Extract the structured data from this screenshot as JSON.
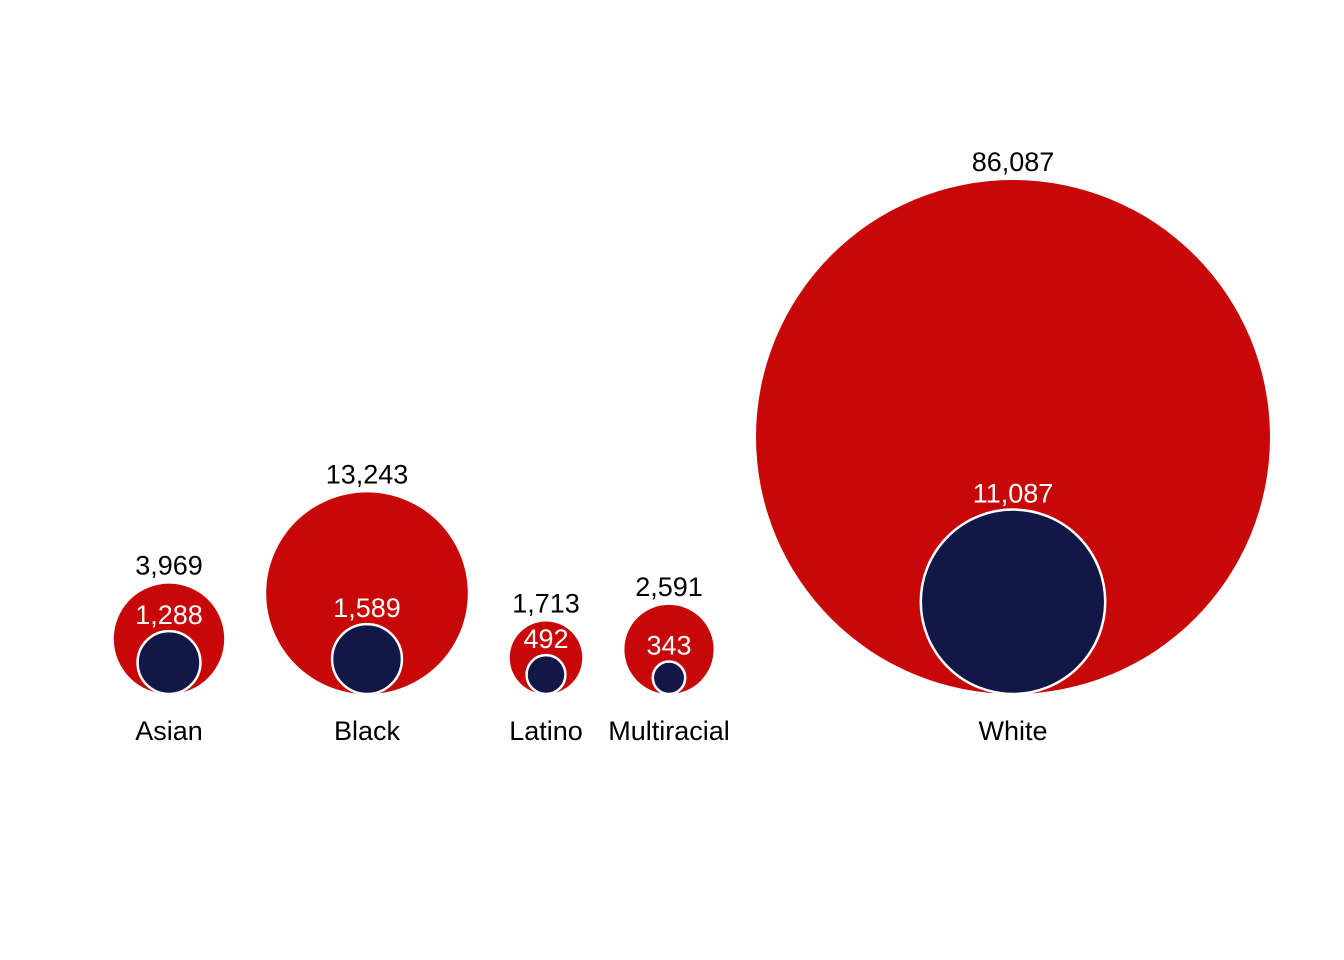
{
  "chart_data": {
    "type": "nested-bubble",
    "title": "",
    "xlabel": "",
    "ylabel": "",
    "categories": [
      "Asian",
      "Black",
      "Latino",
      "Multiracial",
      "White"
    ],
    "outer_values": [
      3969,
      13243,
      1713,
      2591,
      86087
    ],
    "inner_values": [
      1288,
      1589,
      492,
      343,
      11087
    ],
    "outer_labels": [
      "3,969",
      "13,243",
      "1,713",
      "2,591",
      "86,087"
    ],
    "inner_labels": [
      "1,288",
      "1,589",
      "492",
      "343",
      "11,087"
    ],
    "colors": {
      "outer": "#c80808",
      "inner": "#111848",
      "inner_stroke": "#ffffff",
      "outer_label": "#000000",
      "inner_label": "#ffffff"
    },
    "legend": "none",
    "grid": false
  }
}
